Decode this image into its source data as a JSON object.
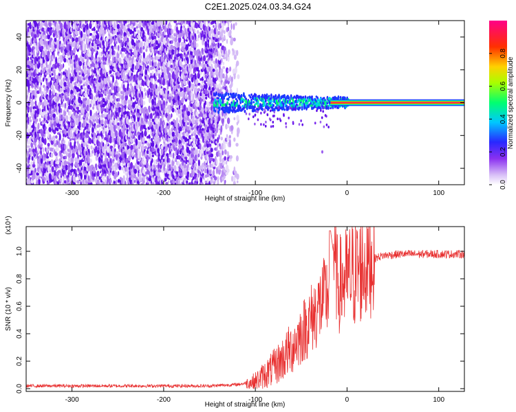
{
  "title": "C2E1.2025.024.03.34.G24",
  "colors": {
    "snr_line": "#e83030",
    "axis": "#000000",
    "colormap": [
      "#ffffff",
      "#c9a8f5",
      "#7a1ff0",
      "#2020ff",
      "#00c8ff",
      "#00ff60",
      "#a8ff00",
      "#ffd000",
      "#ff3000",
      "#ff0088"
    ]
  },
  "chart_data": [
    {
      "type": "heatmap",
      "xlabel": "Height of straight line (km)",
      "ylabel": "Frequency (Hz)",
      "xlim": [
        -350,
        128
      ],
      "ylim": [
        -50,
        50
      ],
      "xticks": [
        -300,
        -200,
        -100,
        0,
        100
      ],
      "yticks": [
        -40,
        -20,
        0,
        20,
        40
      ],
      "noise_region_x": [
        -350,
        -118
      ],
      "spectral_line": {
        "x_start": 0,
        "x_end": 128,
        "frequency": 0
      },
      "colorbar": {
        "label": "Normalized spectral amplitude",
        "range": [
          0.0,
          1.0
        ],
        "ticks": [
          0.0,
          0.2,
          0.4,
          0.6,
          0.8
        ],
        "tick_labels": [
          "0.0",
          "0.2",
          "0.4",
          "0.6",
          "0.8"
        ]
      }
    },
    {
      "type": "line",
      "xlabel": "Height of straight line (km)",
      "ylabel": "SNR (10 * v/v)",
      "multiplier": "(x10⁴)",
      "xlim": [
        -350,
        128
      ],
      "ylim": [
        -0.02,
        1.18
      ],
      "xticks": [
        -300,
        -200,
        -100,
        0,
        100
      ],
      "yticks": [
        0.0,
        0.2,
        0.4,
        0.6,
        0.8,
        1.0
      ],
      "ytick_labels": [
        "0.0",
        "0.2",
        "0.4",
        "0.6",
        "0.8",
        "1.0"
      ],
      "series": [
        {
          "x": [
            -350,
            -300,
            -250,
            -200,
            -150,
            -120,
            -100,
            -90,
            -80,
            -70,
            -60,
            -50,
            -40,
            -30,
            -20,
            -18,
            -10,
            0,
            10,
            20,
            30,
            40,
            60,
            80,
            100,
            128
          ],
          "y": [
            0.02,
            0.02,
            0.02,
            0.02,
            0.02,
            0.03,
            0.05,
            0.1,
            0.15,
            0.22,
            0.3,
            0.4,
            0.5,
            0.6,
            0.7,
            1.15,
            0.75,
            0.8,
            0.85,
            0.9,
            0.95,
            0.97,
            0.98,
            0.98,
            0.98,
            0.98
          ]
        }
      ]
    }
  ]
}
